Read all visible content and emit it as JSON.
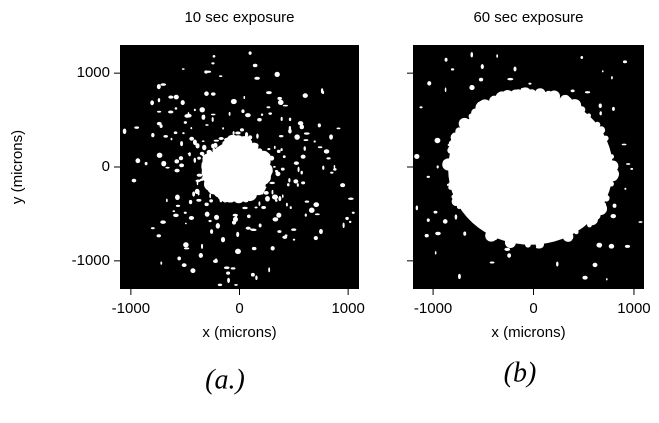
{
  "chart_data": [
    {
      "type": "image",
      "title": "10 sec exposure",
      "xlabel": "x (microns)",
      "ylabel": "y (microns)",
      "xlim": [
        -1100,
        1100
      ],
      "ylim": [
        -1300,
        1300
      ],
      "xticks": [
        -1000,
        0,
        1000
      ],
      "yticks": [
        -1000,
        0,
        1000
      ],
      "annotation": "(a.)"
    },
    {
      "type": "image",
      "title": "60 sec exposure",
      "xlabel": "x (microns)",
      "xlim": [
        -1200,
        1100
      ],
      "ylim": [
        -1300,
        1300
      ],
      "xticks": [
        -1000,
        0,
        1000
      ],
      "yticks": [
        -1000,
        0,
        1000
      ],
      "annotation": "(b)"
    }
  ]
}
